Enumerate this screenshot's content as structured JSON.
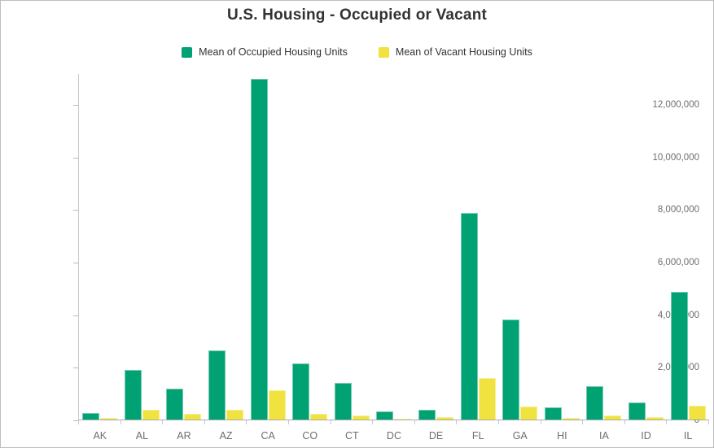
{
  "title": "U.S. Housing - Occupied or Vacant",
  "legend": {
    "items": [
      {
        "label": "Mean of Occupied Housing Units",
        "color": "#00a172"
      },
      {
        "label": "Mean of Vacant Housing Units",
        "color": "#f0e23f"
      }
    ]
  },
  "colors": {
    "occupied": "#00a172",
    "vacant": "#f0e23f",
    "axis_line": "#c9c9c9",
    "baseline": "#ababab",
    "tick_text": "#6e6e6e",
    "title_text": "#323232"
  },
  "chart_data": {
    "type": "bar",
    "title": "U.S. Housing - Occupied or Vacant",
    "xlabel": "",
    "ylabel": "",
    "categories": [
      "AK",
      "AL",
      "AR",
      "AZ",
      "CA",
      "CO",
      "CT",
      "DC",
      "DE",
      "FL",
      "GA",
      "HI",
      "IA",
      "ID",
      "IL"
    ],
    "series": [
      {
        "name": "Mean of Occupied Housing Units",
        "color": "#00a172",
        "values": [
          260000,
          1880000,
          1175000,
          2630000,
          12960000,
          2130000,
          1380000,
          310000,
          370000,
          7860000,
          3800000,
          455000,
          1260000,
          650000,
          4850000
        ]
      },
      {
        "name": "Mean of Vacant Housing Units",
        "color": "#f0e23f",
        "values": [
          75000,
          385000,
          215000,
          385000,
          1100000,
          230000,
          165000,
          43000,
          85000,
          1590000,
          495000,
          75000,
          145000,
          95000,
          520000
        ]
      }
    ],
    "yticks": [
      0,
      2000000,
      4000000,
      6000000,
      8000000,
      10000000,
      12000000
    ],
    "ytick_labels": [
      "0",
      "2,000,000",
      "4,000,000",
      "6,000,000",
      "8,000,000",
      "10,000,000",
      "12,000,000"
    ],
    "ylim": [
      0,
      13170000
    ],
    "grid": false,
    "legend_position": "top"
  }
}
